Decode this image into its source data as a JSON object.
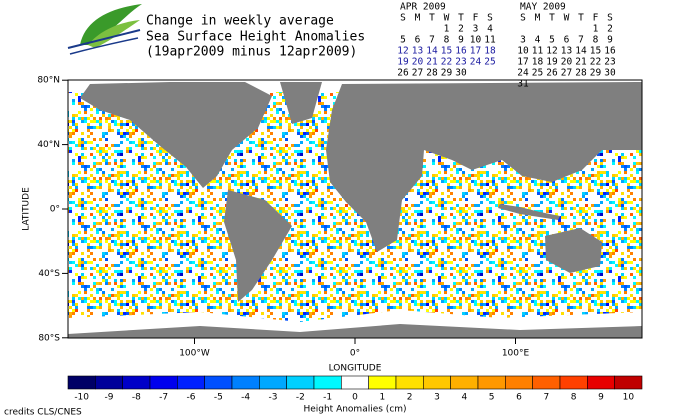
{
  "header": {
    "title": [
      "Change in weekly average",
      "Sea Surface Height Anomalies",
      "(19apr2009 minus 12apr2009)"
    ]
  },
  "calendars": [
    {
      "title": "APR 2009",
      "weekdays": [
        "S",
        "M",
        "T",
        "W",
        "T",
        "F",
        "S"
      ],
      "weeks": [
        {
          "days": [
            null,
            null,
            null,
            1,
            2,
            3,
            4
          ],
          "highlight": false
        },
        {
          "days": [
            5,
            6,
            7,
            8,
            9,
            10,
            11
          ],
          "highlight": false
        },
        {
          "days": [
            12,
            13,
            14,
            15,
            16,
            17,
            18
          ],
          "highlight": true
        },
        {
          "days": [
            19,
            20,
            21,
            22,
            23,
            24,
            25
          ],
          "highlight": true
        },
        {
          "days": [
            26,
            27,
            28,
            29,
            30,
            null,
            null
          ],
          "highlight": false
        }
      ]
    },
    {
      "title": "MAY 2009",
      "weekdays": [
        "S",
        "M",
        "T",
        "W",
        "T",
        "F",
        "S"
      ],
      "weeks": [
        {
          "days": [
            null,
            null,
            null,
            null,
            null,
            1,
            2
          ],
          "highlight": false
        },
        {
          "days": [
            3,
            4,
            5,
            6,
            7,
            8,
            9
          ],
          "highlight": false
        },
        {
          "days": [
            10,
            11,
            12,
            13,
            14,
            15,
            16
          ],
          "highlight": false
        },
        {
          "days": [
            17,
            18,
            19,
            20,
            21,
            22,
            23
          ],
          "highlight": false
        },
        {
          "days": [
            24,
            25,
            26,
            27,
            28,
            29,
            30
          ],
          "highlight": false
        },
        {
          "days": [
            31,
            null,
            null,
            null,
            null,
            null,
            null
          ],
          "highlight": false
        }
      ]
    }
  ],
  "map": {
    "ylabel": "LATITUDE",
    "xlabel": "LONGITUDE",
    "yticks": [
      {
        "value": 80,
        "label": "80°N"
      },
      {
        "value": 40,
        "label": "40°N"
      },
      {
        "value": 0,
        "label": "0°"
      },
      {
        "value": -40,
        "label": "40°S"
      },
      {
        "value": -80,
        "label": "80°S"
      }
    ],
    "xticks": [
      {
        "value": -100,
        "label": "100°W"
      },
      {
        "value": 0,
        "label": "0°"
      },
      {
        "value": 100,
        "label": "100°E"
      }
    ]
  },
  "colorbar": {
    "label": "Height Anomalies (cm)",
    "ticks": [
      -10,
      -9,
      -8,
      -7,
      -6,
      -5,
      -4,
      -3,
      -2,
      -1,
      0,
      1,
      2,
      3,
      4,
      5,
      6,
      7,
      8,
      9,
      10
    ],
    "colors": [
      "#000066",
      "#00009a",
      "#0000c8",
      "#0000ee",
      "#0020ff",
      "#0050ff",
      "#0080ff",
      "#00a8ff",
      "#00d0ff",
      "#00f8ff",
      "#ffffff",
      "#ffff00",
      "#ffe000",
      "#ffc800",
      "#ffb000",
      "#ff9800",
      "#ff8000",
      "#ff6000",
      "#ff4000",
      "#e80000",
      "#c00000"
    ]
  },
  "credits": "credits CLS/CNES"
}
